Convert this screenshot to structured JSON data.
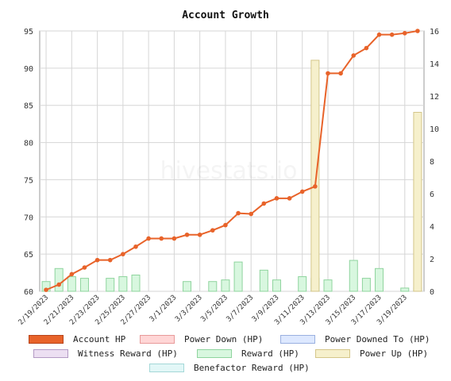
{
  "chart_data": {
    "type": "line",
    "title": "Account Growth",
    "watermark": "hivestats.io",
    "x_labels": [
      "2/19/2023",
      "2/21/2023",
      "2/23/2023",
      "2/25/2023",
      "2/27/2023",
      "3/1/2023",
      "3/3/2023",
      "3/5/2023",
      "3/7/2023",
      "3/9/2023",
      "3/11/2023",
      "3/13/2023",
      "3/15/2023",
      "3/17/2023",
      "3/19/2023"
    ],
    "left_axis": {
      "min": 60,
      "max": 95,
      "ticks": [
        60,
        65,
        70,
        75,
        80,
        85,
        90,
        95
      ]
    },
    "right_axis": {
      "min": 0,
      "max": 16,
      "ticks": [
        0,
        2,
        4,
        6,
        8,
        10,
        12,
        14,
        16
      ]
    },
    "grid": true,
    "series": [
      {
        "name": "Account HP",
        "type": "line",
        "axis": "left",
        "color": "#e8632a",
        "values": [
          60.2,
          60.9,
          62.3,
          63.2,
          64.2,
          64.2,
          65,
          66,
          67.1,
          67.1,
          67.1,
          67.6,
          67.6,
          68.2,
          68.9,
          70.5,
          70.4,
          71.8,
          72.5,
          72.5,
          73.4,
          74.1,
          89.3,
          89.3,
          91.7,
          92.7,
          94.5,
          94.5,
          94.7,
          95
        ]
      },
      {
        "name": "Power Down (HP)",
        "type": "bar",
        "axis": "right",
        "color": "#ffd6d6",
        "values": []
      },
      {
        "name": "Power Downed To (HP)",
        "type": "bar",
        "axis": "right",
        "color": "#dde8ff",
        "values": []
      },
      {
        "name": "Witness Reward (HP)",
        "type": "bar",
        "axis": "right",
        "color": "#e8dff0",
        "values": []
      },
      {
        "name": "Reward (HP)",
        "type": "bar",
        "axis": "right",
        "color": "#d8f7df",
        "values": [
          0.6,
          1.4,
          0.9,
          0.8,
          0,
          0.8,
          0.9,
          1,
          0,
          0,
          0,
          0.6,
          0,
          0.6,
          0.7,
          1.8,
          0,
          1.3,
          0.7,
          0,
          0.9,
          0.8,
          0.7,
          0,
          1.9,
          0.8,
          1.4,
          0,
          0.2,
          0.2
        ]
      },
      {
        "name": "Power Up (HP)",
        "type": "bar",
        "axis": "right",
        "color": "#f6f0cc",
        "values": [
          0,
          0,
          0,
          0,
          0,
          0,
          0,
          0,
          0,
          0,
          0,
          0,
          0,
          0,
          0,
          0,
          0,
          0,
          0,
          0,
          0,
          14.2,
          0,
          0,
          0,
          0,
          0,
          0,
          0,
          11
        ]
      },
      {
        "name": "Benefactor Reward (HP)",
        "type": "bar",
        "axis": "right",
        "color": "#e2f7f7",
        "values": []
      }
    ]
  },
  "legend": [
    {
      "label": "Account HP",
      "fill": "#e8632a",
      "border": "#b8441a"
    },
    {
      "label": "Power Down (HP)",
      "fill": "#ffd6d6",
      "border": "#e89a9a"
    },
    {
      "label": "Power Downed To (HP)",
      "fill": "#dde8ff",
      "border": "#9ab0e0"
    },
    {
      "label": "Witness Reward (HP)",
      "fill": "#ecdff2",
      "border": "#b39ac4"
    },
    {
      "label": "Reward (HP)",
      "fill": "#d8f7df",
      "border": "#8fd49e"
    },
    {
      "label": "Power Up (HP)",
      "fill": "#f6f0cc",
      "border": "#d4c68a"
    },
    {
      "label": "Benefactor Reward (HP)",
      "fill": "#e2f7f7",
      "border": "#a4d8d8"
    }
  ]
}
